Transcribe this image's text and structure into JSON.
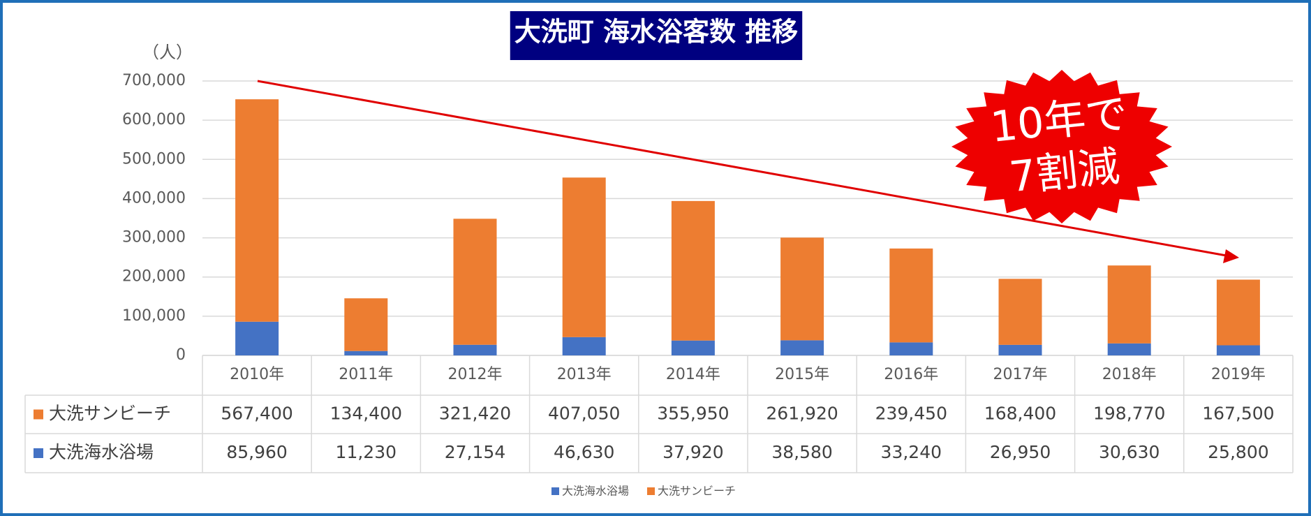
{
  "chart_data": {
    "type": "stacked-bar",
    "title": "大洗町 海水浴客数 推移",
    "y_label": "（人）",
    "annotations": [
      "10年で",
      "7割減"
    ],
    "categories": [
      "2010年",
      "2011年",
      "2012年",
      "2013年",
      "2014年",
      "2015年",
      "2016年",
      "2017年",
      "2018年",
      "2019年"
    ],
    "series": [
      {
        "name": "大洗海水浴場",
        "color": "#4472c4",
        "values": [
          85960,
          11230,
          27154,
          46630,
          37920,
          38580,
          33240,
          26950,
          30630,
          25800
        ],
        "value_labels": [
          "85,960",
          "11,230",
          "27,154",
          "46,630",
          "37,920",
          "38,580",
          "33,240",
          "26,950",
          "30,630",
          "25,800"
        ]
      },
      {
        "name": "大洗サンビーチ",
        "color": "#ed7d31",
        "values": [
          567400,
          134400,
          321420,
          407050,
          355950,
          261920,
          239450,
          168400,
          198770,
          167500
        ],
        "value_labels": [
          "567,400",
          "134,400",
          "321,420",
          "407,050",
          "355,950",
          "261,920",
          "239,450",
          "168,400",
          "198,770",
          "167,500"
        ]
      }
    ],
    "ylim": [
      0,
      700000
    ],
    "yticks": [
      0,
      {
        "value": 100000,
        "label": "100,000"
      },
      {
        "value": 200000,
        "label": "200,000"
      },
      {
        "value": 300000,
        "label": "300,000"
      },
      {
        "value": 400000,
        "label": "400,000"
      },
      {
        "value": 500000,
        "label": "500,000"
      },
      {
        "value": 600000,
        "label": "600,000"
      },
      {
        "value": 700000,
        "label": "700,000"
      }
    ],
    "grid": true,
    "legend": "bottom"
  }
}
